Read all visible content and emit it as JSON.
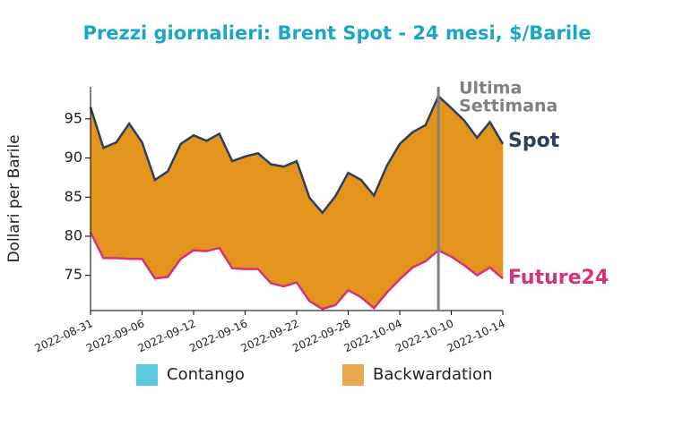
{
  "chart_data": {
    "type": "band",
    "title": "Prezzi giornalieri: Brent Spot - 24 mesi, $/Barile",
    "ylabel": "Dollari per Barile",
    "categories": [
      "2022-08-31",
      null,
      null,
      null,
      "2022-09-06",
      null,
      null,
      null,
      "2022-09-12",
      null,
      null,
      null,
      "2022-09-16",
      null,
      null,
      null,
      "2022-09-22",
      null,
      null,
      null,
      "2022-09-28",
      null,
      null,
      null,
      "2022-10-04",
      null,
      null,
      null,
      "2022-10-10",
      null,
      null,
      null,
      "2022-10-14"
    ],
    "series": [
      {
        "name": "Spot",
        "color": "#2b3f5f",
        "values": [
          96.5,
          91.3,
          92.0,
          94.4,
          92.0,
          87.2,
          88.3,
          91.8,
          92.9,
          92.2,
          93.1,
          89.6,
          90.2,
          90.6,
          89.2,
          88.9,
          89.6,
          84.9,
          83.0,
          85.1,
          88.1,
          87.2,
          85.2,
          89.0,
          91.8,
          93.3,
          94.2,
          97.9,
          96.4,
          94.8,
          92.6,
          94.6,
          91.8
        ]
      },
      {
        "name": "Future24",
        "color": "#d6317a",
        "values": [
          80.5,
          77.2,
          77.2,
          77.1,
          77.1,
          74.6,
          74.8,
          77.1,
          78.2,
          78.1,
          78.5,
          75.9,
          75.8,
          75.8,
          74.0,
          73.6,
          74.1,
          71.7,
          70.7,
          71.2,
          73.1,
          72.2,
          70.8,
          72.8,
          74.5,
          76.0,
          76.8,
          78.2,
          77.4,
          76.3,
          75.0,
          76.0,
          74.6
        ]
      }
    ],
    "fills": [
      {
        "name": "Contango",
        "color": "#5bc8e0",
        "legend_color": "#5bc8e0"
      },
      {
        "name": "Backwardation",
        "color": "#e3941d",
        "legend_color": "#eba94f"
      }
    ],
    "marker": {
      "category": 27,
      "label": [
        "Ultima",
        "Settimana"
      ],
      "color": "#808080"
    },
    "ylim": [
      70.5,
      99.1
    ],
    "yticks": [
      75,
      80,
      85,
      90,
      95
    ]
  }
}
